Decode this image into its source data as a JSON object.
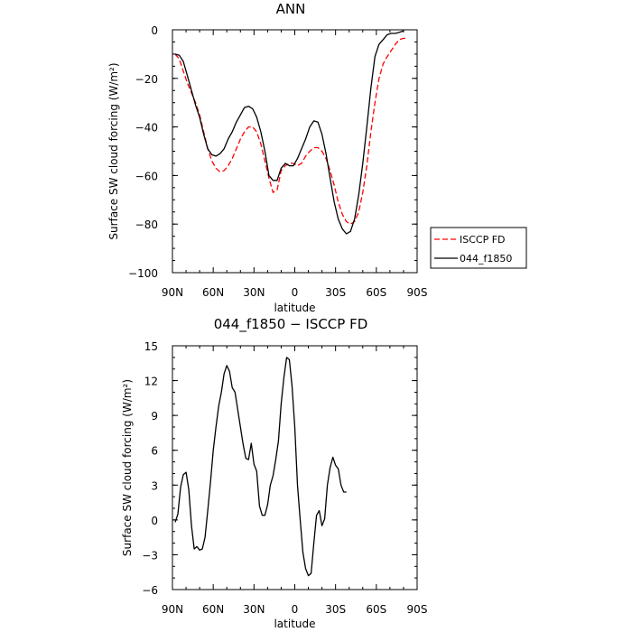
{
  "chart_data": [
    {
      "type": "line",
      "title": "ANN",
      "xlabel": "latitude",
      "ylabel": "Surface SW cloud forcing (W/m²)",
      "xlim": [
        90,
        -90
      ],
      "ylim": [
        -100,
        0
      ],
      "x_ticks": [
        90,
        60,
        30,
        0,
        -30,
        -60,
        -90
      ],
      "x_tick_labels": [
        "90N",
        "60N",
        "30N",
        "0",
        "30S",
        "60S",
        "90S"
      ],
      "y_ticks": [
        0,
        -20,
        -40,
        -60,
        -80,
        -100
      ],
      "y_tick_labels": [
        "0",
        "−20",
        "−40",
        "−60",
        "−80",
        "−100"
      ],
      "grid": false,
      "legend": {
        "placement": "outside-right"
      },
      "series": [
        {
          "name": "ISCCP FD",
          "color": "#ff0000",
          "dash": "dashed",
          "points": [
            [
              88,
              -10
            ],
            [
              85,
              -12
            ],
            [
              82,
              -17
            ],
            [
              79,
              -22
            ],
            [
              76,
              -26
            ],
            [
              73,
              -30
            ],
            [
              70,
              -35
            ],
            [
              67,
              -42
            ],
            [
              64,
              -49
            ],
            [
              61,
              -54
            ],
            [
              58,
              -57
            ],
            [
              55,
              -58.5
            ],
            [
              52,
              -58
            ],
            [
              49,
              -56
            ],
            [
              46,
              -53
            ],
            [
              43,
              -49
            ],
            [
              40,
              -45
            ],
            [
              37,
              -42
            ],
            [
              34,
              -40
            ],
            [
              31,
              -40
            ],
            [
              28,
              -42
            ],
            [
              25,
              -47
            ],
            [
              22,
              -54
            ],
            [
              19,
              -61
            ],
            [
              16,
              -67
            ],
            [
              13,
              -66
            ],
            [
              10,
              -58
            ],
            [
              7,
              -56
            ],
            [
              4,
              -55
            ],
            [
              1,
              -55
            ],
            [
              -2,
              -56
            ],
            [
              -5,
              -55
            ],
            [
              -8,
              -52
            ],
            [
              -11,
              -50
            ],
            [
              -14,
              -48.5
            ],
            [
              -17,
              -48.5
            ],
            [
              -20,
              -50
            ],
            [
              -23,
              -53
            ],
            [
              -26,
              -58
            ],
            [
              -29,
              -64
            ],
            [
              -32,
              -71
            ],
            [
              -35,
              -76
            ],
            [
              -38,
              -79
            ],
            [
              -41,
              -80
            ],
            [
              -44,
              -79
            ],
            [
              -47,
              -75
            ],
            [
              -50,
              -67
            ],
            [
              -53,
              -56
            ],
            [
              -56,
              -42
            ],
            [
              -59,
              -30
            ],
            [
              -62,
              -20
            ],
            [
              -65,
              -14
            ],
            [
              -68,
              -11
            ],
            [
              -71,
              -8.5
            ],
            [
              -74,
              -6
            ],
            [
              -77,
              -4
            ],
            [
              -80,
              -3.5
            ],
            [
              -83,
              -3.5
            ]
          ]
        },
        {
          "name": "044_f1850",
          "color": "#000000",
          "dash": "solid",
          "points": [
            [
              88,
              -10
            ],
            [
              85,
              -10.5
            ],
            [
              82,
              -13
            ],
            [
              79,
              -19
            ],
            [
              76,
              -25
            ],
            [
              73,
              -31
            ],
            [
              70,
              -36
            ],
            [
              67,
              -43
            ],
            [
              64,
              -49
            ],
            [
              61,
              -51.5
            ],
            [
              58,
              -52
            ],
            [
              55,
              -51
            ],
            [
              52,
              -49
            ],
            [
              49,
              -45
            ],
            [
              46,
              -42
            ],
            [
              43,
              -38
            ],
            [
              40,
              -35
            ],
            [
              37,
              -32
            ],
            [
              34,
              -31.5
            ],
            [
              31,
              -32.5
            ],
            [
              28,
              -36
            ],
            [
              25,
              -42
            ],
            [
              22,
              -50
            ],
            [
              19,
              -60
            ],
            [
              16,
              -62
            ],
            [
              13,
              -62
            ],
            [
              10,
              -57
            ],
            [
              7,
              -55
            ],
            [
              4,
              -56
            ],
            [
              1,
              -56
            ],
            [
              -2,
              -53
            ],
            [
              -5,
              -49
            ],
            [
              -8,
              -45
            ],
            [
              -11,
              -40
            ],
            [
              -14,
              -37.5
            ],
            [
              -17,
              -38
            ],
            [
              -20,
              -43
            ],
            [
              -23,
              -51
            ],
            [
              -26,
              -61
            ],
            [
              -29,
              -71
            ],
            [
              -32,
              -78
            ],
            [
              -35,
              -82
            ],
            [
              -38,
              -84
            ],
            [
              -41,
              -83
            ],
            [
              -44,
              -78
            ],
            [
              -47,
              -68
            ],
            [
              -50,
              -55
            ],
            [
              -53,
              -40
            ],
            [
              -56,
              -24
            ],
            [
              -59,
              -11
            ],
            [
              -62,
              -6
            ],
            [
              -65,
              -4
            ],
            [
              -68,
              -2
            ],
            [
              -71,
              -1.5
            ],
            [
              -74,
              -1.5
            ],
            [
              -77,
              -1
            ],
            [
              -80,
              -0.5
            ]
          ]
        }
      ]
    },
    {
      "type": "line",
      "title": "044_f1850 − ISCCP FD",
      "xlabel": "latitude",
      "ylabel": "Surface SW cloud forcing (W/m²)",
      "xlim": [
        90,
        -90
      ],
      "ylim": [
        -6,
        15
      ],
      "x_ticks": [
        90,
        60,
        30,
        0,
        -30,
        -60,
        -90
      ],
      "x_tick_labels": [
        "90N",
        "60N",
        "30N",
        "0",
        "30S",
        "60S",
        "90S"
      ],
      "y_ticks": [
        15,
        12,
        9,
        6,
        3,
        0,
        -3,
        -6
      ],
      "y_tick_labels": [
        "15",
        "12",
        "9",
        "6",
        "3",
        "0",
        "−3",
        "−6"
      ],
      "grid": false,
      "series": [
        {
          "color": "#000000",
          "dash": "solid",
          "points": [
            [
              88,
              -0.2
            ],
            [
              86,
              0.5
            ],
            [
              84,
              2.8
            ],
            [
              82,
              3.9
            ],
            [
              80,
              4.1
            ],
            [
              78,
              2.6
            ],
            [
              76,
              -0.5
            ],
            [
              74,
              -2.5
            ],
            [
              72,
              -2.3
            ],
            [
              70,
              -2.6
            ],
            [
              68,
              -2.5
            ],
            [
              66,
              -1.5
            ],
            [
              64,
              0.8
            ],
            [
              62,
              3.3
            ],
            [
              60,
              6.0
            ],
            [
              58,
              8.0
            ],
            [
              56,
              9.8
            ],
            [
              54,
              11.0
            ],
            [
              52,
              12.6
            ],
            [
              50,
              13.3
            ],
            [
              48,
              12.8
            ],
            [
              46,
              11.4
            ],
            [
              44,
              11.0
            ],
            [
              42,
              9.5
            ],
            [
              40,
              8.0
            ],
            [
              38,
              6.5
            ],
            [
              36,
              5.3
            ],
            [
              34,
              5.2
            ],
            [
              32,
              6.6
            ],
            [
              30,
              4.8
            ],
            [
              28,
              4.2
            ],
            [
              26,
              1.2
            ],
            [
              24,
              0.4
            ],
            [
              22,
              0.4
            ],
            [
              20,
              1.3
            ],
            [
              18,
              3.0
            ],
            [
              16,
              3.8
            ],
            [
              14,
              5.2
            ],
            [
              12,
              6.8
            ],
            [
              10,
              10.0
            ],
            [
              8,
              12.3
            ],
            [
              6,
              14.0
            ],
            [
              4,
              13.8
            ],
            [
              2,
              11.5
            ],
            [
              0,
              8.0
            ],
            [
              -2,
              3.0
            ],
            [
              -4,
              0.0
            ],
            [
              -6,
              -2.8
            ],
            [
              -8,
              -4.2
            ],
            [
              -10,
              -4.8
            ],
            [
              -12,
              -4.6
            ],
            [
              -14,
              -2.0
            ],
            [
              -16,
              0.4
            ],
            [
              -18,
              0.8
            ],
            [
              -20,
              -0.5
            ],
            [
              -22,
              0.1
            ],
            [
              -24,
              3.0
            ],
            [
              -26,
              4.5
            ],
            [
              -28,
              5.4
            ],
            [
              -30,
              4.7
            ],
            [
              -32,
              4.4
            ],
            [
              -34,
              3.0
            ],
            [
              -36,
              2.4
            ],
            [
              -38,
              2.4
            ]
          ]
        }
      ]
    }
  ]
}
